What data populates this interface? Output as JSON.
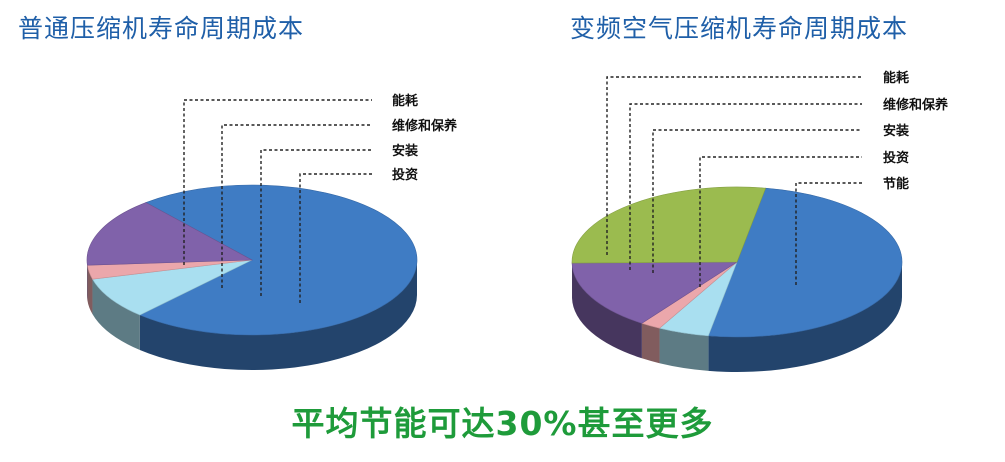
{
  "chart_data": [
    {
      "type": "pie",
      "title": "普通压缩机寿命周期成本",
      "slices": [
        {
          "name": "能耗",
          "value": 73,
          "color": "#3f7cc4"
        },
        {
          "name": "维修和保养",
          "value": 9,
          "color": "#a9dff0"
        },
        {
          "name": "安装",
          "value": 3,
          "color": "#eba7ab"
        },
        {
          "name": "投资",
          "value": 15,
          "color": "#8062aa"
        }
      ],
      "style": "3d",
      "legend_placement": "top-right"
    },
    {
      "type": "pie",
      "title": "变频空气压缩机寿命周期成本",
      "slices": [
        {
          "name": "能耗",
          "value": 50,
          "color": "#3f7cc4"
        },
        {
          "name": "维修和保养",
          "value": 5,
          "color": "#a9dff0"
        },
        {
          "name": "安装",
          "value": 2,
          "color": "#eba7ab"
        },
        {
          "name": "投资",
          "value": 15,
          "color": "#8062aa"
        },
        {
          "name": "节能",
          "value": 28,
          "color": "#9bbb4f"
        }
      ],
      "style": "3d",
      "legend_placement": "top-right"
    }
  ],
  "footer_text": "平均节能可达30%甚至更多",
  "colors": {
    "title": "#1f5fa8",
    "footer": "#1e9b3a"
  }
}
